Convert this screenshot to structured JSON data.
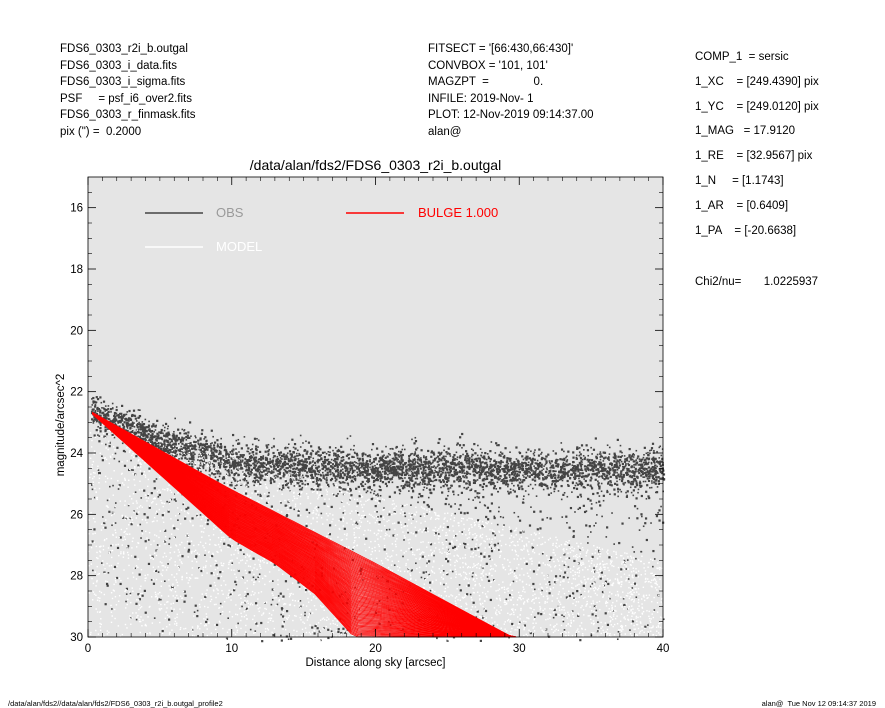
{
  "header_left": [
    "FDS6_0303_r2i_b.outgal",
    "FDS6_0303_i_data.fits",
    "FDS6_0303_i_sigma.fits",
    "PSF     = psf_i6_over2.fits",
    "FDS6_0303_r_finmask.fits",
    "pix (\") =  0.2000"
  ],
  "header_mid": [
    "FITSECT = '[66:430,66:430]'",
    "CONVBOX = '101, 101'",
    "MAGZPT  =              0.",
    "INFILE: 2019-Nov- 1",
    "PLOT: 12-Nov-2019 09:14:37.00",
    "alan@"
  ],
  "params": [
    "COMP_1  = sersic",
    "1_XC    = [249.4390] pix",
    "1_YC    = [249.0120] pix",
    "1_MAG   = 17.9120",
    "1_RE    = [32.9567] pix",
    "1_N     = [1.1743]",
    "1_AR    = [0.6409]",
    "1_PA    = [-20.6638]"
  ],
  "chi2": "Chi2/nu=       1.0225937",
  "footer_left": "/data/alan/fds2//data/alan/fds2/FDS6_0303_r2i_b.outgal_profile2",
  "footer_right": "alan@  Tue Nov 12 09:14:37 2019",
  "colors": {
    "plot_bg": "#e5e5e5",
    "obs": "#444444",
    "model": "#ffffff",
    "bulge": "#ff0000",
    "obs_legend_text": "#9a9a9a"
  },
  "chart_data": {
    "type": "scatter",
    "title": "/data/alan/fds2/FDS6_0303_r2i_b.outgal",
    "xlabel": "Distance along sky [arcsec]",
    "ylabel": "magnitude/arcsec^2",
    "xlim": [
      0,
      40
    ],
    "ylim": [
      30,
      15
    ],
    "y_inverted": true,
    "x_ticks": [
      "0",
      "10",
      "20",
      "30",
      "40"
    ],
    "y_ticks": [
      "16",
      "18",
      "20",
      "22",
      "24",
      "26",
      "28",
      "30"
    ],
    "legend": [
      {
        "label": "OBS",
        "color": "#444444",
        "placement": "top-left"
      },
      {
        "label": "MODEL",
        "color": "#ffffff",
        "placement": "top-left"
      },
      {
        "label": "BULGE  1.000",
        "color": "#ff0000",
        "placement": "top-center"
      }
    ],
    "series": [
      {
        "name": "OBS",
        "description_points": [
          [
            0.5,
            22.6
          ],
          [
            5,
            23.6
          ],
          [
            10,
            24.3
          ],
          [
            20,
            24.5
          ],
          [
            30,
            24.5
          ],
          [
            40,
            24.5
          ]
        ],
        "sky_level": 24.5,
        "sky_spread": 0.5
      },
      {
        "name": "MODEL",
        "envelope_upper": [
          [
            0,
            22.6
          ],
          [
            20,
            25.4
          ],
          [
            40,
            27.5
          ]
        ],
        "envelope_lower": [
          [
            0,
            22.6
          ],
          [
            10,
            26.5
          ],
          [
            20,
            29.5
          ],
          [
            22,
            30
          ]
        ]
      },
      {
        "name": "BULGE  1.000",
        "envelope_upper": [
          [
            0,
            22.6
          ],
          [
            10,
            25.2
          ],
          [
            20,
            27.6
          ],
          [
            29.5,
            30
          ]
        ],
        "envelope_lower": [
          [
            0,
            22.6
          ],
          [
            10,
            26.8
          ],
          [
            13,
            27.6
          ],
          [
            15.8,
            28.6
          ],
          [
            18.5,
            30
          ]
        ]
      }
    ]
  }
}
